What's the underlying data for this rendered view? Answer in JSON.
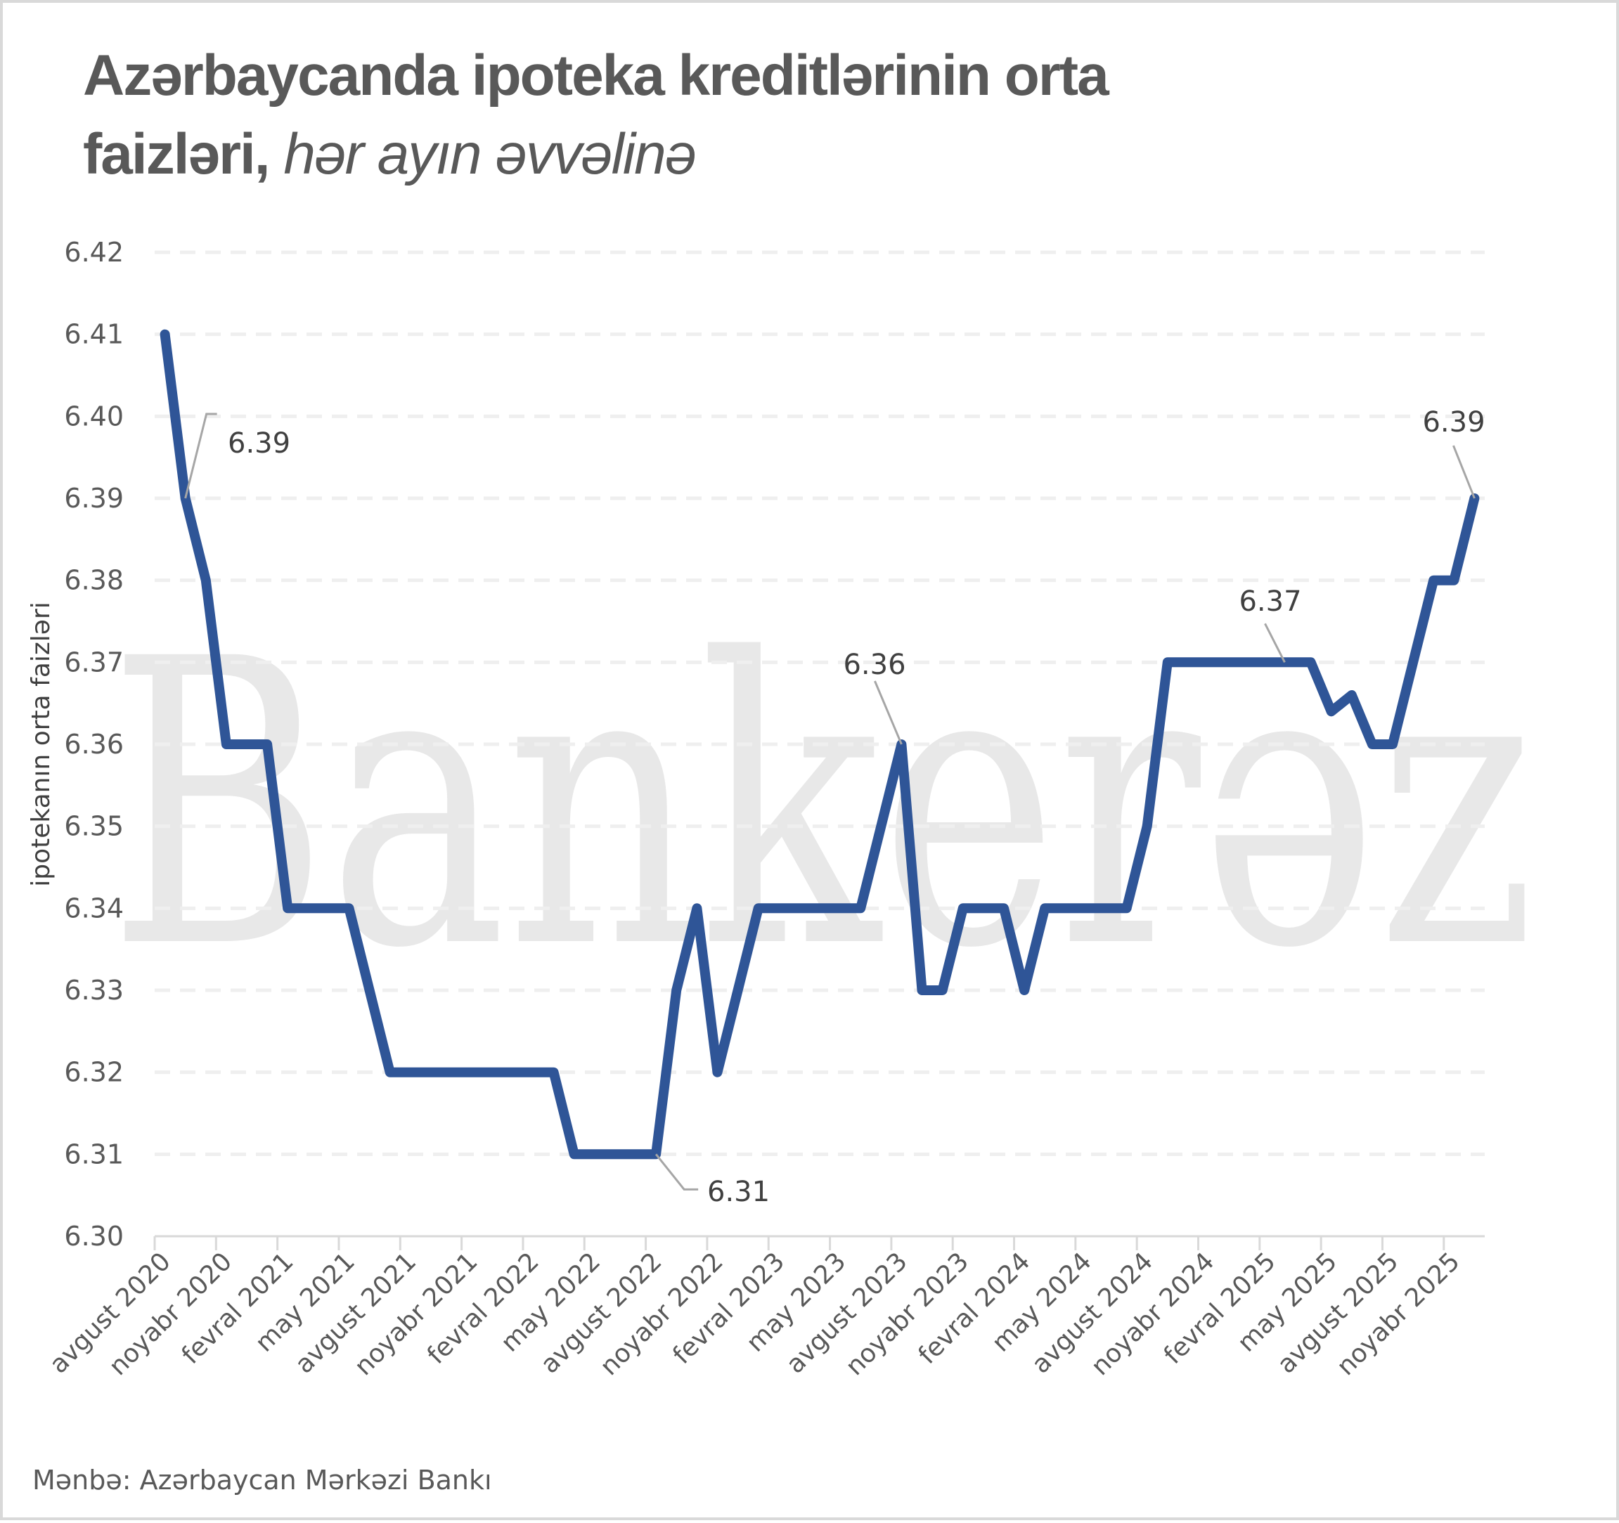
{
  "title": {
    "bold": "Azərbaycanda ipoteka kreditlərinin orta faizləri,",
    "bold_line1": "Azərbaycanda ipoteka kreditlərinin orta",
    "bold_line2": "faizləri,",
    "italic": "hər ayın əvvəlinə"
  },
  "source": "Mənbə: Azərbaycan Mərkəzi Bankı",
  "watermark": "Bankerəz",
  "colors": {
    "line": "#2F5597",
    "grid": "#efefef",
    "axis": "#d9d9d9",
    "text": "#595959",
    "leader": "#a6a6a6"
  },
  "chart_data": {
    "type": "line",
    "title": "Azərbaycanda ipoteka kreditlərinin orta faizləri, hər ayın əvvəlinə",
    "xlabel": "",
    "ylabel": "ipotekanın orta faizləri",
    "ylim": [
      6.3,
      6.42
    ],
    "yticks": [
      "6.30",
      "6.31",
      "6.32",
      "6.33",
      "6.34",
      "6.35",
      "6.36",
      "6.37",
      "6.38",
      "6.39",
      "6.40",
      "6.41",
      "6.42"
    ],
    "grid": true,
    "legend": null,
    "x_tick_labels": [
      "avgust 2020",
      "noyabr 2020",
      "fevral 2021",
      "may 2021",
      "avgust 2021",
      "noyabr 2021",
      "fevral 2022",
      "may 2022",
      "avgust 2022",
      "noyabr 2022",
      "fevral 2023",
      "may 2023",
      "avgust 2023",
      "noyabr 2023",
      "fevral 2024",
      "may 2024",
      "avgust 2024",
      "noyabr 2024",
      "fevral 2025",
      "may 2025",
      "avgust 2025",
      "noyabr 2025"
    ],
    "x_tick_every": 3,
    "series": [
      {
        "name": "ipotekanın orta faizləri",
        "values": [
          6.41,
          6.39,
          6.38,
          6.36,
          6.36,
          6.36,
          6.34,
          6.34,
          6.34,
          6.34,
          6.33,
          6.32,
          6.32,
          6.32,
          6.32,
          6.32,
          6.32,
          6.32,
          6.32,
          6.32,
          6.31,
          6.31,
          6.31,
          6.31,
          6.31,
          6.33,
          6.34,
          6.32,
          6.33,
          6.34,
          6.34,
          6.34,
          6.34,
          6.34,
          6.34,
          6.35,
          6.36,
          6.33,
          6.33,
          6.34,
          6.34,
          6.34,
          6.33,
          6.34,
          6.34,
          6.34,
          6.34,
          6.34,
          6.35,
          6.37,
          6.37,
          6.37,
          6.37,
          6.37,
          6.37,
          6.37,
          6.37,
          6.364,
          6.366,
          6.36,
          6.36,
          6.37,
          6.38,
          6.38,
          6.39
        ]
      }
    ],
    "annotations": [
      {
        "index": 1,
        "text": "6.39"
      },
      {
        "index": 24,
        "text": "6.31"
      },
      {
        "index": 36,
        "text": "6.36"
      },
      {
        "index": 55,
        "text": "6.37"
      },
      {
        "index": 64,
        "text": "6.39"
      }
    ]
  }
}
